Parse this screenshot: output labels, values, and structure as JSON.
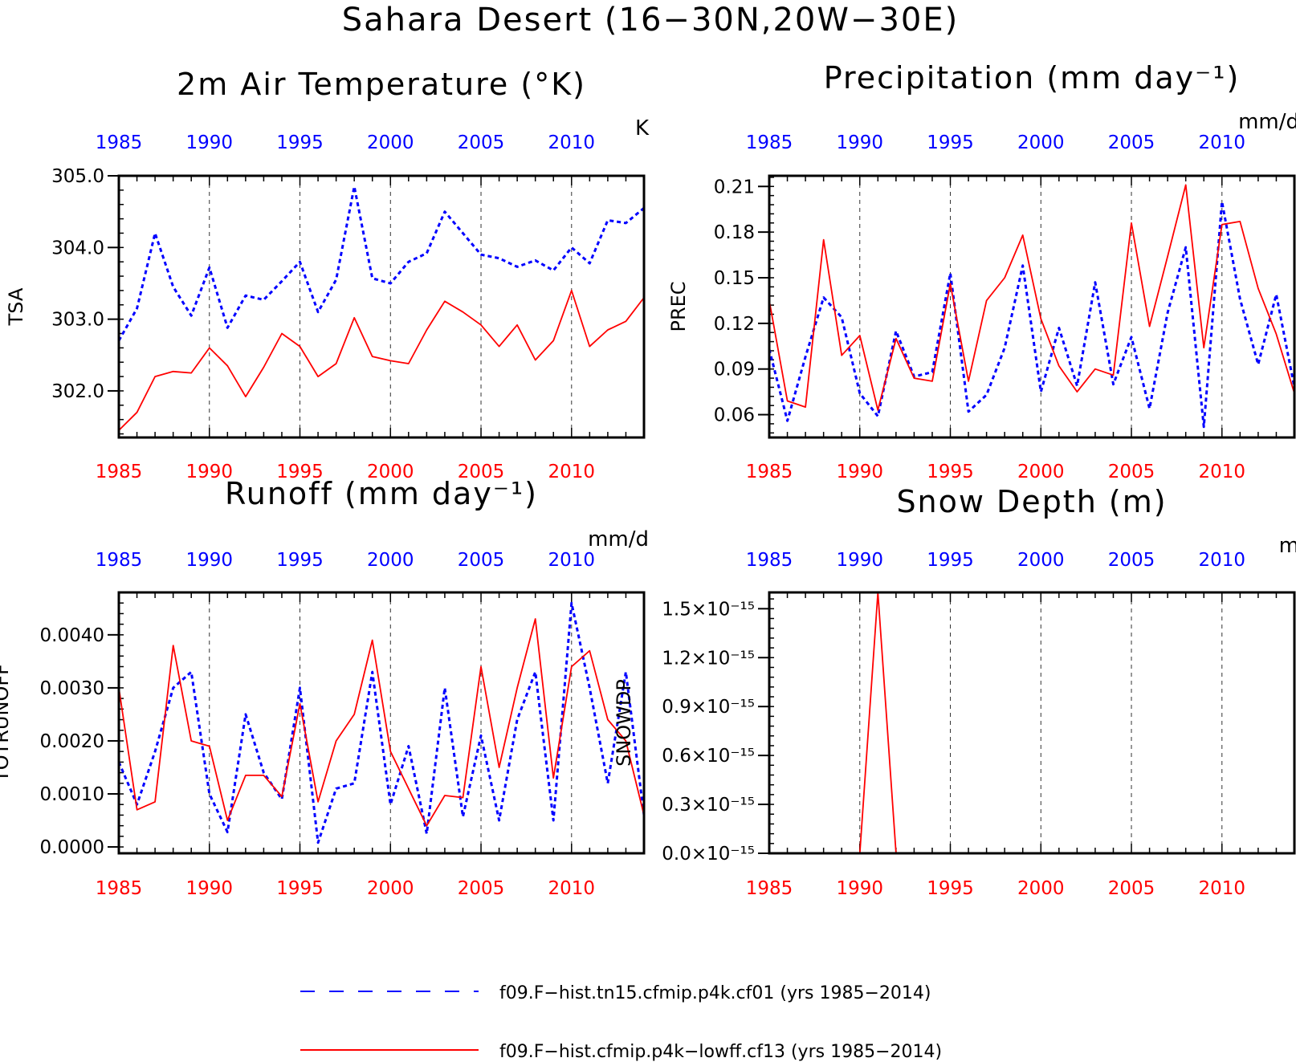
{
  "suptitle": "Sahara Desert (16−30N,20W−30E)",
  "colors": {
    "series1": "#0000ff",
    "series2": "#ff0000",
    "top_ticks": "#0000ff",
    "bottom_ticks": "#ff0000"
  },
  "legend": [
    {
      "label": "f09.F−hist.tn15.cfmip.p4k.cf01 (yrs 1985−2014)",
      "color": "#0000ff",
      "style": "dashed"
    },
    {
      "label": "f09.F−hist.cfmip.p4k−lowff.cf13 (yrs 1985−2014)",
      "color": "#ff0000",
      "style": "solid"
    }
  ],
  "chart_data": [
    {
      "type": "line",
      "title": "2m Air Temperature (°K)",
      "ylabel": "TSA",
      "units": "K",
      "ylim": [
        301.35,
        305.0
      ],
      "yticks": [
        302.0,
        303.0,
        304.0,
        305.0
      ],
      "ytick_labels": [
        "302.0",
        "303.0",
        "304.0",
        "305.0"
      ],
      "xlim": [
        1985,
        2014
      ],
      "xticks": [
        1985,
        1990,
        1995,
        2000,
        2005,
        2010
      ],
      "grid": "vertical-dashed",
      "x": [
        1985,
        1986,
        1987,
        1988,
        1989,
        1990,
        1991,
        1992,
        1993,
        1994,
        1995,
        1996,
        1997,
        1998,
        1999,
        2000,
        2001,
        2002,
        2003,
        2004,
        2005,
        2006,
        2007,
        2008,
        2009,
        2010,
        2011,
        2012,
        2013,
        2014
      ],
      "series": [
        {
          "values": [
            302.7,
            303.15,
            304.2,
            303.45,
            303.05,
            303.72,
            302.88,
            303.33,
            303.27,
            303.53,
            303.8,
            303.1,
            303.55,
            304.85,
            303.57,
            303.5,
            303.8,
            303.92,
            304.5,
            304.2,
            303.9,
            303.85,
            303.73,
            303.82,
            303.68,
            304.0,
            303.78,
            304.38,
            304.34,
            304.55
          ]
        },
        {
          "values": [
            301.45,
            301.7,
            302.2,
            302.27,
            302.25,
            302.6,
            302.35,
            301.92,
            302.33,
            302.8,
            302.62,
            302.2,
            302.38,
            303.02,
            302.48,
            302.42,
            302.38,
            302.85,
            303.25,
            303.1,
            302.92,
            302.62,
            302.92,
            302.43,
            302.7,
            303.4,
            302.62,
            302.85,
            302.97,
            303.3
          ]
        }
      ]
    },
    {
      "type": "line",
      "title": "Precipitation (mm day⁻¹)",
      "ylabel": "PREC",
      "units": "mm/d",
      "ylim": [
        0.045,
        0.217
      ],
      "yticks": [
        0.06,
        0.09,
        0.12,
        0.15,
        0.18,
        0.21
      ],
      "ytick_labels": [
        "0.06",
        "0.09",
        "0.12",
        "0.15",
        "0.18",
        "0.21"
      ],
      "xlim": [
        1985,
        2014
      ],
      "xticks": [
        1985,
        1990,
        1995,
        2000,
        2005,
        2010
      ],
      "grid": "vertical-dashed",
      "x": [
        1985,
        1986,
        1987,
        1988,
        1989,
        1990,
        1991,
        1992,
        1993,
        1994,
        1995,
        1996,
        1997,
        1998,
        1999,
        2000,
        2001,
        2002,
        2003,
        2004,
        2005,
        2006,
        2007,
        2008,
        2009,
        2010,
        2011,
        2012,
        2013,
        2014
      ],
      "series": [
        {
          "values": [
            0.103,
            0.056,
            0.098,
            0.137,
            0.124,
            0.074,
            0.059,
            0.115,
            0.085,
            0.088,
            0.153,
            0.062,
            0.073,
            0.104,
            0.158,
            0.075,
            0.117,
            0.079,
            0.147,
            0.08,
            0.111,
            0.064,
            0.127,
            0.17,
            0.052,
            0.2,
            0.136,
            0.093,
            0.139,
            0.078
          ]
        },
        {
          "values": [
            0.135,
            0.069,
            0.065,
            0.175,
            0.099,
            0.112,
            0.063,
            0.11,
            0.084,
            0.082,
            0.146,
            0.082,
            0.135,
            0.15,
            0.178,
            0.123,
            0.092,
            0.075,
            0.09,
            0.086,
            0.186,
            0.118,
            0.164,
            0.211,
            0.104,
            0.185,
            0.187,
            0.143,
            0.113,
            0.074
          ]
        }
      ]
    },
    {
      "type": "line",
      "title": "Runoff (mm day⁻¹)",
      "ylabel": "TOTRUNOFF",
      "units": "mm/d",
      "ylim": [
        -0.00012,
        0.0048
      ],
      "yticks": [
        0.0,
        0.001,
        0.002,
        0.003,
        0.004
      ],
      "ytick_labels": [
        "0.0000",
        "0.0010",
        "0.0020",
        "0.0030",
        "0.0040"
      ],
      "xlim": [
        1985,
        2014
      ],
      "xticks": [
        1985,
        1990,
        1995,
        2000,
        2005,
        2010
      ],
      "grid": "vertical-dashed",
      "x": [
        1985,
        1986,
        1987,
        1988,
        1989,
        1990,
        1991,
        1992,
        1993,
        1994,
        1995,
        1996,
        1997,
        1998,
        1999,
        2000,
        2001,
        2002,
        2003,
        2004,
        2005,
        2006,
        2007,
        2008,
        2009,
        2010,
        2011,
        2012,
        2013,
        2014
      ],
      "series": [
        {
          "values": [
            0.0016,
            0.0008,
            0.0018,
            0.003,
            0.0033,
            0.001,
            0.00028,
            0.0025,
            0.0014,
            0.0009,
            0.003,
            8e-05,
            0.0011,
            0.0012,
            0.0033,
            0.0008,
            0.0019,
            0.00025,
            0.003,
            0.00057,
            0.0021,
            0.0005,
            0.0024,
            0.0033,
            0.0005,
            0.0046,
            0.003,
            0.0012,
            0.0033,
            0.0006
          ]
        },
        {
          "values": [
            0.003,
            0.0007,
            0.00085,
            0.0038,
            0.002,
            0.0019,
            0.0005,
            0.00135,
            0.00135,
            0.00095,
            0.0027,
            0.00085,
            0.002,
            0.0025,
            0.0039,
            0.0018,
            0.0011,
            0.0004,
            0.00097,
            0.00093,
            0.0034,
            0.0015,
            0.003,
            0.0043,
            0.0013,
            0.0034,
            0.0037,
            0.0024,
            0.002,
            0.0006
          ]
        }
      ]
    },
    {
      "type": "line",
      "title": "Snow Depth (m)",
      "ylabel": "SNOWDP",
      "units": "m",
      "ylim": [
        0.0,
        1.6e-15
      ],
      "yticks": [
        0.0,
        3e-16,
        6e-16,
        9e-16,
        1.2e-15,
        1.5e-15
      ],
      "ytick_labels": [
        "0.0×10⁻¹⁵",
        "0.3×10⁻¹⁵",
        "0.6×10⁻¹⁵",
        "0.9×10⁻¹⁵",
        "1.2×10⁻¹⁵",
        "1.5×10⁻¹⁵"
      ],
      "xlim": [
        1985,
        2014
      ],
      "xticks": [
        1985,
        1990,
        1995,
        2000,
        2005,
        2010
      ],
      "grid": "vertical-dashed",
      "x": [
        1985,
        1986,
        1987,
        1988,
        1989,
        1990,
        1991,
        1992,
        1993,
        1994,
        1995,
        1996,
        1997,
        1998,
        1999,
        2000,
        2001,
        2002,
        2003,
        2004,
        2005,
        2006,
        2007,
        2008,
        2009,
        2010,
        2011,
        2012,
        2013,
        2014
      ],
      "series": [
        {
          "values": [
            0,
            0,
            0,
            0,
            0,
            0,
            0,
            0,
            0,
            0,
            0,
            0,
            0,
            0,
            0,
            0,
            0,
            0,
            0,
            0,
            0,
            0,
            0,
            0,
            0,
            0,
            0,
            0,
            0,
            0
          ]
        },
        {
          "values": [
            0,
            0,
            0,
            0,
            0,
            0,
            1.6e-15,
            0,
            0,
            0,
            0,
            0,
            0,
            0,
            0,
            0,
            0,
            0,
            0,
            0,
            0,
            0,
            0,
            0,
            0,
            0,
            0,
            0,
            0,
            0
          ]
        }
      ]
    }
  ]
}
